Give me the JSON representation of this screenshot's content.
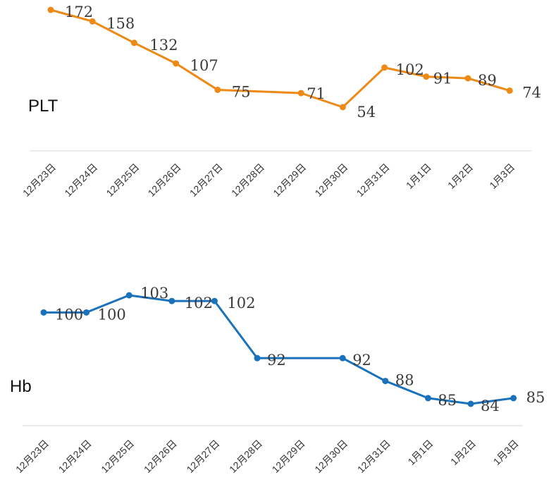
{
  "chart_data": [
    {
      "type": "line",
      "title": "PLT",
      "color": "#ED8A17",
      "categories": [
        "12月23日",
        "12月24日",
        "12月25日",
        "12月26日",
        "12月27日",
        "12月28日",
        "12月29日",
        "12月30日",
        "12月31日",
        "1月1日",
        "1月2日",
        "1月3日"
      ],
      "x_index": [
        0,
        1,
        2,
        3,
        4,
        6,
        7,
        8,
        9,
        10,
        11
      ],
      "values": [
        172,
        158,
        132,
        107,
        75,
        71,
        54,
        102,
        91,
        89,
        74
      ],
      "labels": [
        "172",
        "158",
        "132",
        "107",
        "75",
        "71",
        "54",
        "102",
        "91",
        "89",
        "74"
      ],
      "xlabel": "",
      "ylabel": "",
      "ylim": [
        40,
        185
      ],
      "grid": false,
      "legend": "none"
    },
    {
      "type": "line",
      "title": "Hb",
      "color": "#1A72BC",
      "categories": [
        "12月23日",
        "12月24日",
        "12月25日",
        "12月26日",
        "12月27日",
        "12月28日",
        "12月29日",
        "12月30日",
        "12月31日",
        "1月1日",
        "1月2日",
        "1月3日"
      ],
      "x_index": [
        0,
        1,
        2,
        3,
        4,
        5,
        7,
        8,
        9,
        10,
        11
      ],
      "values": [
        100,
        100,
        103,
        102,
        102,
        92,
        92,
        88,
        85,
        84,
        85
      ],
      "labels": [
        "100",
        "100",
        "103",
        "102",
        "102",
        "92",
        "92",
        "88",
        "85",
        "84",
        "85"
      ],
      "xlabel": "",
      "ylabel": "",
      "ylim": [
        80,
        106
      ],
      "grid": false,
      "legend": "none"
    }
  ]
}
